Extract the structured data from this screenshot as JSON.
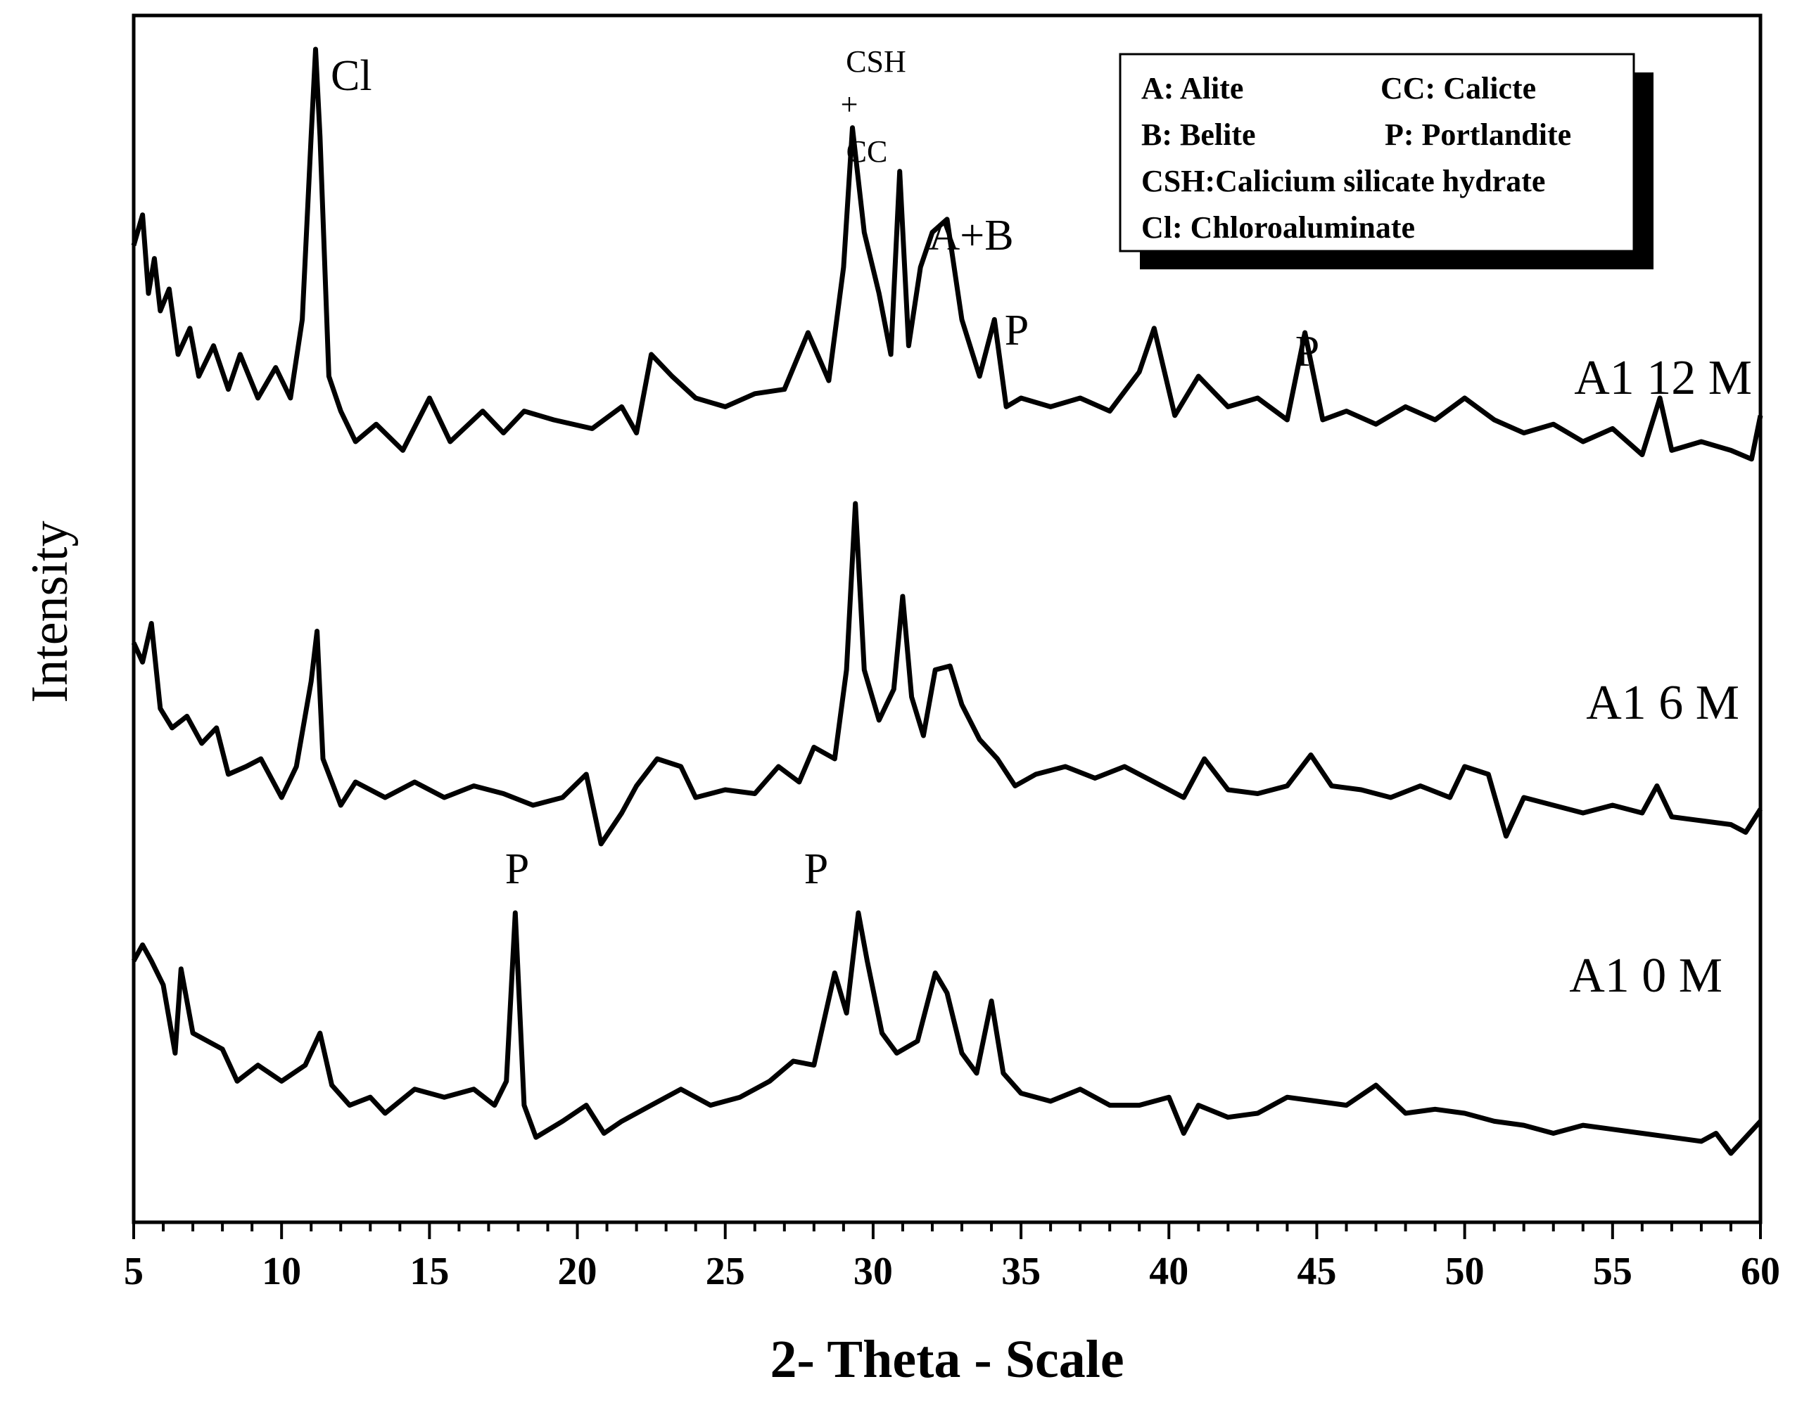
{
  "chart_data": {
    "type": "line",
    "xlabel": "2- Theta - Scale",
    "ylabel": "Intensity",
    "xlim": [
      5,
      60
    ],
    "xticks": [
      "5",
      "10",
      "15",
      "20",
      "25",
      "30",
      "35",
      "40",
      "45",
      "50",
      "55",
      "60"
    ],
    "y_axis": "relative intensity, series vertically offset, no tick labels",
    "series": [
      {
        "name": "A1 12 M",
        "points": [
          [
            5,
            0.55
          ],
          [
            5.3,
            0.62
          ],
          [
            5.5,
            0.44
          ],
          [
            5.7,
            0.52
          ],
          [
            5.9,
            0.4
          ],
          [
            6.2,
            0.45
          ],
          [
            6.5,
            0.3
          ],
          [
            6.9,
            0.36
          ],
          [
            7.2,
            0.25
          ],
          [
            7.7,
            0.32
          ],
          [
            8.2,
            0.22
          ],
          [
            8.6,
            0.3
          ],
          [
            9.2,
            0.2
          ],
          [
            9.8,
            0.27
          ],
          [
            10.3,
            0.2
          ],
          [
            10.7,
            0.38
          ],
          [
            11.0,
            0.8
          ],
          [
            11.15,
            1.0
          ],
          [
            11.3,
            0.8
          ],
          [
            11.6,
            0.25
          ],
          [
            12.0,
            0.17
          ],
          [
            12.5,
            0.1
          ],
          [
            13.2,
            0.14
          ],
          [
            14.1,
            0.08
          ],
          [
            15.0,
            0.2
          ],
          [
            15.7,
            0.1
          ],
          [
            16.8,
            0.17
          ],
          [
            17.5,
            0.12
          ],
          [
            18.2,
            0.17
          ],
          [
            19.2,
            0.15
          ],
          [
            20.5,
            0.13
          ],
          [
            21.5,
            0.18
          ],
          [
            22.0,
            0.12
          ],
          [
            22.5,
            0.3
          ],
          [
            23.2,
            0.25
          ],
          [
            24.0,
            0.2
          ],
          [
            25.0,
            0.18
          ],
          [
            26.0,
            0.21
          ],
          [
            27.0,
            0.22
          ],
          [
            27.8,
            0.35
          ],
          [
            28.5,
            0.24
          ],
          [
            29.0,
            0.5
          ],
          [
            29.3,
            0.82
          ],
          [
            29.7,
            0.58
          ],
          [
            30.2,
            0.44
          ],
          [
            30.6,
            0.3
          ],
          [
            30.9,
            0.72
          ],
          [
            31.2,
            0.32
          ],
          [
            31.6,
            0.5
          ],
          [
            32.0,
            0.58
          ],
          [
            32.5,
            0.61
          ],
          [
            33.0,
            0.38
          ],
          [
            33.6,
            0.25
          ],
          [
            34.1,
            0.38
          ],
          [
            34.5,
            0.18
          ],
          [
            35.0,
            0.2
          ],
          [
            36.0,
            0.18
          ],
          [
            37.0,
            0.2
          ],
          [
            38.0,
            0.17
          ],
          [
            39.0,
            0.26
          ],
          [
            39.5,
            0.36
          ],
          [
            40.2,
            0.16
          ],
          [
            41.0,
            0.25
          ],
          [
            42.0,
            0.18
          ],
          [
            43.0,
            0.2
          ],
          [
            44.0,
            0.15
          ],
          [
            44.6,
            0.35
          ],
          [
            45.2,
            0.15
          ],
          [
            46.0,
            0.17
          ],
          [
            47.0,
            0.14
          ],
          [
            48.0,
            0.18
          ],
          [
            49.0,
            0.15
          ],
          [
            50.0,
            0.2
          ],
          [
            51.0,
            0.15
          ],
          [
            52.0,
            0.12
          ],
          [
            53.0,
            0.14
          ],
          [
            54.0,
            0.1
          ],
          [
            55.0,
            0.13
          ],
          [
            56.0,
            0.07
          ],
          [
            56.6,
            0.2
          ],
          [
            57.0,
            0.08
          ],
          [
            58.0,
            0.1
          ],
          [
            59.0,
            0.08
          ],
          [
            59.7,
            0.06
          ],
          [
            60,
            0.16
          ]
        ]
      },
      {
        "name": "A1 6 M",
        "points": [
          [
            5,
            0.52
          ],
          [
            5.3,
            0.47
          ],
          [
            5.6,
            0.57
          ],
          [
            5.9,
            0.35
          ],
          [
            6.3,
            0.3
          ],
          [
            6.8,
            0.33
          ],
          [
            7.3,
            0.26
          ],
          [
            7.8,
            0.3
          ],
          [
            8.2,
            0.18
          ],
          [
            8.8,
            0.2
          ],
          [
            9.3,
            0.22
          ],
          [
            10.0,
            0.12
          ],
          [
            10.5,
            0.2
          ],
          [
            11.0,
            0.42
          ],
          [
            11.2,
            0.55
          ],
          [
            11.4,
            0.22
          ],
          [
            12.0,
            0.1
          ],
          [
            12.5,
            0.16
          ],
          [
            13.5,
            0.12
          ],
          [
            14.5,
            0.16
          ],
          [
            15.5,
            0.12
          ],
          [
            16.5,
            0.15
          ],
          [
            17.5,
            0.13
          ],
          [
            18.5,
            0.1
          ],
          [
            19.5,
            0.12
          ],
          [
            20.3,
            0.18
          ],
          [
            20.8,
            0.0
          ],
          [
            21.5,
            0.08
          ],
          [
            22.0,
            0.15
          ],
          [
            22.7,
            0.22
          ],
          [
            23.5,
            0.2
          ],
          [
            24.0,
            0.12
          ],
          [
            25.0,
            0.14
          ],
          [
            26.0,
            0.13
          ],
          [
            26.8,
            0.2
          ],
          [
            27.5,
            0.16
          ],
          [
            28.0,
            0.25
          ],
          [
            28.7,
            0.22
          ],
          [
            29.1,
            0.45
          ],
          [
            29.4,
            0.88
          ],
          [
            29.7,
            0.45
          ],
          [
            30.2,
            0.32
          ],
          [
            30.7,
            0.4
          ],
          [
            31.0,
            0.64
          ],
          [
            31.3,
            0.38
          ],
          [
            31.7,
            0.28
          ],
          [
            32.1,
            0.45
          ],
          [
            32.6,
            0.46
          ],
          [
            33.0,
            0.36
          ],
          [
            33.6,
            0.27
          ],
          [
            34.2,
            0.22
          ],
          [
            34.8,
            0.15
          ],
          [
            35.5,
            0.18
          ],
          [
            36.5,
            0.2
          ],
          [
            37.5,
            0.17
          ],
          [
            38.5,
            0.2
          ],
          [
            39.5,
            0.16
          ],
          [
            40.5,
            0.12
          ],
          [
            41.2,
            0.22
          ],
          [
            42.0,
            0.14
          ],
          [
            43.0,
            0.13
          ],
          [
            44.0,
            0.15
          ],
          [
            44.8,
            0.23
          ],
          [
            45.5,
            0.15
          ],
          [
            46.5,
            0.14
          ],
          [
            47.5,
            0.12
          ],
          [
            48.5,
            0.15
          ],
          [
            49.5,
            0.12
          ],
          [
            50.0,
            0.2
          ],
          [
            50.8,
            0.18
          ],
          [
            51.4,
            0.02
          ],
          [
            52.0,
            0.12
          ],
          [
            53.0,
            0.1
          ],
          [
            54.0,
            0.08
          ],
          [
            55.0,
            0.1
          ],
          [
            56.0,
            0.08
          ],
          [
            56.5,
            0.15
          ],
          [
            57.0,
            0.07
          ],
          [
            58.0,
            0.06
          ],
          [
            59.0,
            0.05
          ],
          [
            59.5,
            0.03
          ],
          [
            60,
            0.09
          ]
        ]
      },
      {
        "name": "A1 0 M",
        "points": [
          [
            5,
            0.48
          ],
          [
            5.3,
            0.52
          ],
          [
            5.6,
            0.48
          ],
          [
            6.0,
            0.42
          ],
          [
            6.4,
            0.25
          ],
          [
            6.6,
            0.46
          ],
          [
            7.0,
            0.3
          ],
          [
            7.5,
            0.28
          ],
          [
            8.0,
            0.26
          ],
          [
            8.5,
            0.18
          ],
          [
            9.2,
            0.22
          ],
          [
            10.0,
            0.18
          ],
          [
            10.8,
            0.22
          ],
          [
            11.3,
            0.3
          ],
          [
            11.7,
            0.17
          ],
          [
            12.3,
            0.12
          ],
          [
            13.0,
            0.14
          ],
          [
            13.5,
            0.1
          ],
          [
            14.5,
            0.16
          ],
          [
            15.5,
            0.14
          ],
          [
            16.5,
            0.16
          ],
          [
            17.2,
            0.12
          ],
          [
            17.6,
            0.18
          ],
          [
            17.9,
            0.6
          ],
          [
            18.2,
            0.12
          ],
          [
            18.6,
            0.04
          ],
          [
            19.5,
            0.08
          ],
          [
            20.3,
            0.12
          ],
          [
            20.9,
            0.05
          ],
          [
            21.5,
            0.08
          ],
          [
            22.5,
            0.12
          ],
          [
            23.5,
            0.16
          ],
          [
            24.5,
            0.12
          ],
          [
            25.5,
            0.14
          ],
          [
            26.5,
            0.18
          ],
          [
            27.3,
            0.23
          ],
          [
            28.0,
            0.22
          ],
          [
            28.7,
            0.45
          ],
          [
            29.1,
            0.35
          ],
          [
            29.5,
            0.6
          ],
          [
            29.8,
            0.48
          ],
          [
            30.3,
            0.3
          ],
          [
            30.8,
            0.25
          ],
          [
            31.5,
            0.28
          ],
          [
            32.1,
            0.45
          ],
          [
            32.5,
            0.4
          ],
          [
            33.0,
            0.25
          ],
          [
            33.5,
            0.2
          ],
          [
            34.0,
            0.38
          ],
          [
            34.4,
            0.2
          ],
          [
            35.0,
            0.15
          ],
          [
            36.0,
            0.13
          ],
          [
            37.0,
            0.16
          ],
          [
            38.0,
            0.12
          ],
          [
            39.0,
            0.12
          ],
          [
            40.0,
            0.14
          ],
          [
            40.5,
            0.05
          ],
          [
            41.0,
            0.12
          ],
          [
            42.0,
            0.09
          ],
          [
            43.0,
            0.1
          ],
          [
            44.0,
            0.14
          ],
          [
            45.0,
            0.13
          ],
          [
            46.0,
            0.12
          ],
          [
            47.0,
            0.17
          ],
          [
            48.0,
            0.1
          ],
          [
            49.0,
            0.11
          ],
          [
            50.0,
            0.1
          ],
          [
            51.0,
            0.08
          ],
          [
            52.0,
            0.07
          ],
          [
            53.0,
            0.05
          ],
          [
            54.0,
            0.07
          ],
          [
            55.0,
            0.06
          ],
          [
            56.0,
            0.05
          ],
          [
            57.0,
            0.04
          ],
          [
            58.0,
            0.03
          ],
          [
            58.5,
            0.05
          ],
          [
            59.0,
            0.0
          ],
          [
            60,
            0.08
          ]
        ]
      }
    ],
    "annotations": [
      {
        "text": "Cl",
        "x": 11.4,
        "series": "A1 12 M"
      },
      {
        "text": "CSH",
        "x": 29.2,
        "series": "A1 12 M"
      },
      {
        "text": "+",
        "x": 29.2,
        "series": "A1 12 M"
      },
      {
        "text": "CC",
        "x": 29.2,
        "series": "A1 12 M"
      },
      {
        "text": "A+B",
        "x": 32.2,
        "series": "A1 12 M"
      },
      {
        "text": "P",
        "x": 34.5,
        "series": "A1 12 M"
      },
      {
        "text": "P",
        "x": 44.6,
        "series": "A1 12 M"
      },
      {
        "text": "P",
        "x": 17.9,
        "series": "A1 0 M"
      },
      {
        "text": "P",
        "x": 28.6,
        "series": "A1 0 M"
      }
    ],
    "legend": {
      "position": "top-right",
      "entries": [
        "A: Alite",
        "CC: Calicte",
        "B: Belite",
        "P: Portlandite",
        "CSH:Calicium silicate hydrate",
        "Cl: Chloroaluminate"
      ]
    }
  }
}
